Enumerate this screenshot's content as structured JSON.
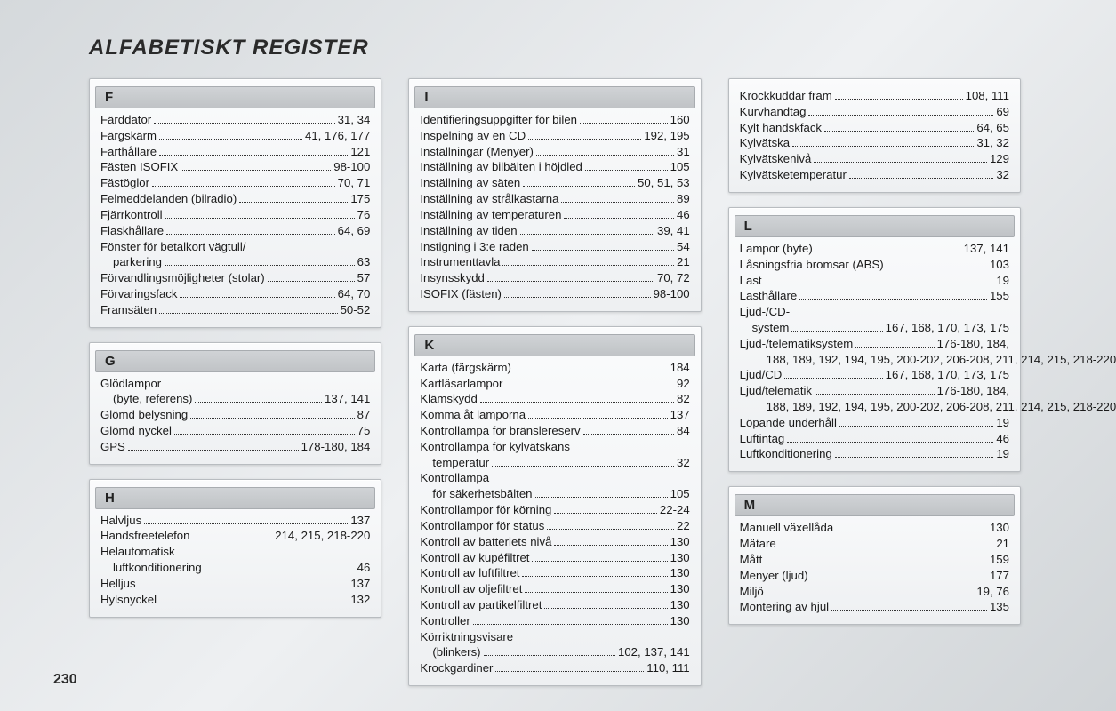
{
  "title": "ALFABETISKT REGISTER",
  "page_number": "230",
  "columns": [
    [
      {
        "letter": "F",
        "entries": [
          {
            "label": "Färddator",
            "pages": "31, 34"
          },
          {
            "label": "Färgskärm",
            "pages": "41, 176, 177"
          },
          {
            "label": "Farthållare",
            "pages": "121"
          },
          {
            "label": "Fästen ISOFIX",
            "pages": "98-100"
          },
          {
            "label": "Fästöglor",
            "pages": "70, 71"
          },
          {
            "label": "Felmeddelanden (bilradio)",
            "pages": "175"
          },
          {
            "label": "Fjärrkontroll",
            "pages": "76"
          },
          {
            "label": "Flaskhållare",
            "pages": "64, 69"
          },
          {
            "label": "Fönster för betalkort vägtull/",
            "nopage": true
          },
          {
            "label": "parkering",
            "pages": "63",
            "sub": true
          },
          {
            "label": "Förvandlingsmöjligheter (stolar)",
            "pages": "57"
          },
          {
            "label": "Förvaringsfack",
            "pages": "64, 70"
          },
          {
            "label": "Framsäten",
            "pages": "50-52"
          }
        ]
      },
      {
        "letter": "G",
        "entries": [
          {
            "label": "Glödlampor",
            "nopage": true
          },
          {
            "label": "(byte, referens)",
            "pages": "137, 141",
            "sub": true
          },
          {
            "label": "Glömd belysning",
            "pages": "87"
          },
          {
            "label": "Glömd nyckel",
            "pages": "75"
          },
          {
            "label": "GPS",
            "pages": "178-180, 184"
          }
        ]
      },
      {
        "letter": "H",
        "entries": [
          {
            "label": "Halvljus",
            "pages": "137"
          },
          {
            "label": "Handsfreetelefon",
            "pages": "214, 215, 218-220"
          },
          {
            "label": "Helautomatisk",
            "nopage": true
          },
          {
            "label": "luftkonditionering",
            "pages": "46",
            "sub": true
          },
          {
            "label": "Helljus",
            "pages": "137"
          },
          {
            "label": "Hylsnyckel",
            "pages": "132"
          }
        ]
      }
    ],
    [
      {
        "letter": "I",
        "entries": [
          {
            "label": "Identifieringsuppgifter för bilen",
            "pages": "160"
          },
          {
            "label": "Inspelning av en CD",
            "pages": "192, 195"
          },
          {
            "label": "Inställningar (Menyer)",
            "pages": "31"
          },
          {
            "label": "Inställning av bilbälten i höjdled",
            "pages": "105"
          },
          {
            "label": "Inställning av säten",
            "pages": "50, 51, 53"
          },
          {
            "label": "Inställning av strålkastarna",
            "pages": "89"
          },
          {
            "label": "Inställning av temperaturen",
            "pages": "46"
          },
          {
            "label": "Inställning av tiden",
            "pages": "39, 41"
          },
          {
            "label": "Instigning i 3:e raden",
            "pages": "54"
          },
          {
            "label": "Instrumenttavla",
            "pages": "21"
          },
          {
            "label": "Insynsskydd",
            "pages": "70, 72"
          },
          {
            "label": "ISOFIX (fästen)",
            "pages": "98-100"
          }
        ]
      },
      {
        "letter": "K",
        "entries": [
          {
            "label": "Karta (färgskärm)",
            "pages": "184"
          },
          {
            "label": "Kartläsarlampor",
            "pages": "92"
          },
          {
            "label": "Klämskydd",
            "pages": "82"
          },
          {
            "label": "Komma åt lamporna",
            "pages": "137"
          },
          {
            "label": "Kontrollampa för bränslereserv",
            "pages": "84"
          },
          {
            "label": "Kontrollampa för kylvätskans",
            "nopage": true
          },
          {
            "label": "temperatur",
            "pages": "32",
            "sub": true
          },
          {
            "label": "Kontrollampa",
            "nopage": true
          },
          {
            "label": "för säkerhetsbälten",
            "pages": "105",
            "sub": true
          },
          {
            "label": "Kontrollampor för körning",
            "pages": "22-24"
          },
          {
            "label": "Kontrollampor för status",
            "pages": "22"
          },
          {
            "label": "Kontroll av batteriets nivå",
            "pages": "130"
          },
          {
            "label": "Kontroll av kupéfiltret",
            "pages": "130"
          },
          {
            "label": "Kontroll av luftfiltret",
            "pages": "130"
          },
          {
            "label": "Kontroll av oljefiltret",
            "pages": "130"
          },
          {
            "label": "Kontroll av partikelfiltret",
            "pages": "130"
          },
          {
            "label": "Kontroller",
            "pages": "130"
          },
          {
            "label": "Körriktningsvisare",
            "nopage": true
          },
          {
            "label": "(blinkers)",
            "pages": "102, 137, 141",
            "sub": true
          },
          {
            "label": "Krockgardiner",
            "pages": "110, 111"
          }
        ]
      }
    ],
    [
      {
        "entries": [
          {
            "label": "Krockkuddar fram",
            "pages": "108, 111"
          },
          {
            "label": "Kurvhandtag",
            "pages": "69"
          },
          {
            "label": "Kylt handskfack",
            "pages": "64, 65"
          },
          {
            "label": "Kylvätska",
            "pages": "31, 32"
          },
          {
            "label": "Kylvätskenivå",
            "pages": "129"
          },
          {
            "label": "Kylvätsketemperatur",
            "pages": "32"
          }
        ]
      },
      {
        "letter": "L",
        "entries": [
          {
            "label": "Lampor (byte)",
            "pages": "137, 141"
          },
          {
            "label": "Låsningsfria bromsar (ABS)",
            "pages": "103"
          },
          {
            "label": "Last",
            "pages": "19"
          },
          {
            "label": "Lasthållare",
            "pages": "155"
          },
          {
            "label": "Ljud-/CD-",
            "nopage": true
          },
          {
            "label": "system",
            "pages": "167, 168, 170, 173, 175",
            "sub": true
          },
          {
            "label": "Ljud-/telematiksystem",
            "pages": "176-180, 184,"
          },
          {
            "label": "188, 189, 192, 194, 195, 200-202, 206-208, 211, 214, 215, 218-220",
            "wrap": true
          },
          {
            "label": "Ljud/CD",
            "pages": "167, 168, 170, 173, 175"
          },
          {
            "label": "Ljud/telematik",
            "pages": "176-180, 184,"
          },
          {
            "label": "188, 189, 192, 194, 195, 200-202, 206-208, 211, 214, 215, 218-220",
            "wrap": true
          },
          {
            "label": "Löpande underhåll",
            "pages": "19"
          },
          {
            "label": "Luftintag",
            "pages": "46"
          },
          {
            "label": "Luftkonditionering",
            "pages": "19"
          }
        ]
      },
      {
        "letter": "M",
        "entries": [
          {
            "label": "Manuell växellåda",
            "pages": "130"
          },
          {
            "label": "Mätare",
            "pages": "21"
          },
          {
            "label": "Mått",
            "pages": "159"
          },
          {
            "label": "Menyer (ljud)",
            "pages": "177"
          },
          {
            "label": "Miljö",
            "pages": "19, 76"
          },
          {
            "label": "Montering av hjul",
            "pages": "135"
          }
        ]
      }
    ]
  ]
}
